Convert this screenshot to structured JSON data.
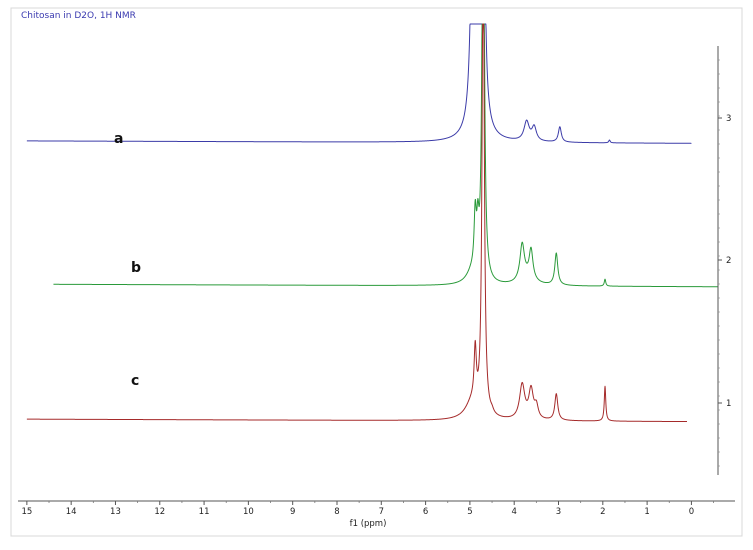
{
  "title": "Chitosan in D2O, 1H NMR",
  "chart_data": {
    "type": "line",
    "title": "Chitosan in D2O, 1H NMR",
    "xlabel": "f1 (ppm)",
    "ylabel": "",
    "xlim": [
      15.2,
      -0.6
    ],
    "ylim": [
      0,
      3.4
    ],
    "x_ticks": [
      "15",
      "14",
      "13",
      "12",
      "11",
      "10",
      "9",
      "8",
      "7",
      "6",
      "5",
      "4",
      "3",
      "2",
      "1",
      "0"
    ],
    "y_ticks": [
      "1",
      "2",
      "3"
    ],
    "series": [
      {
        "name": "a",
        "color": "#3b3ba8",
        "baseline": 2.55,
        "x_range": [
          15.0,
          0.0
        ],
        "peaks": [
          {
            "ppm": 4.92,
            "height": 2.6,
            "width": 0.05
          },
          {
            "ppm": 4.7,
            "height": 3.4,
            "width": 0.03
          },
          {
            "ppm": 4.78,
            "height": 0.35,
            "width": 0.12
          },
          {
            "ppm": 3.72,
            "height": 0.14,
            "width": 0.07
          },
          {
            "ppm": 3.55,
            "height": 0.1,
            "width": 0.06
          },
          {
            "ppm": 2.97,
            "height": 0.11,
            "width": 0.04
          },
          {
            "ppm": 1.85,
            "height": 0.02,
            "width": 0.02
          }
        ]
      },
      {
        "name": "b",
        "color": "#2a9a3a",
        "baseline": 1.52,
        "x_range": [
          14.4,
          -0.6
        ],
        "peaks": [
          {
            "ppm": 4.88,
            "height": 0.4,
            "width": 0.03
          },
          {
            "ppm": 4.82,
            "height": 0.3,
            "width": 0.03
          },
          {
            "ppm": 4.7,
            "height": 3.4,
            "width": 0.03
          },
          {
            "ppm": 4.95,
            "height": 0.08,
            "width": 0.15
          },
          {
            "ppm": 3.82,
            "height": 0.26,
            "width": 0.06
          },
          {
            "ppm": 3.62,
            "height": 0.21,
            "width": 0.05
          },
          {
            "ppm": 3.7,
            "height": 0.05,
            "width": 0.2
          },
          {
            "ppm": 3.05,
            "height": 0.23,
            "width": 0.04
          },
          {
            "ppm": 1.95,
            "height": 0.05,
            "width": 0.02
          }
        ]
      },
      {
        "name": "c",
        "color": "#a52a2a",
        "baseline": 0.55,
        "x_range": [
          15.0,
          0.1
        ],
        "peaks": [
          {
            "ppm": 4.88,
            "height": 0.38,
            "width": 0.03
          },
          {
            "ppm": 4.7,
            "height": 3.4,
            "width": 0.03
          },
          {
            "ppm": 4.95,
            "height": 0.12,
            "width": 0.18
          },
          {
            "ppm": 4.5,
            "height": 0.02,
            "width": 0.04
          },
          {
            "ppm": 3.82,
            "height": 0.25,
            "width": 0.07
          },
          {
            "ppm": 3.62,
            "height": 0.21,
            "width": 0.06
          },
          {
            "ppm": 3.5,
            "height": 0.09,
            "width": 0.05
          },
          {
            "ppm": 3.05,
            "height": 0.19,
            "width": 0.04
          },
          {
            "ppm": 1.95,
            "height": 0.25,
            "width": 0.02
          }
        ]
      }
    ]
  }
}
